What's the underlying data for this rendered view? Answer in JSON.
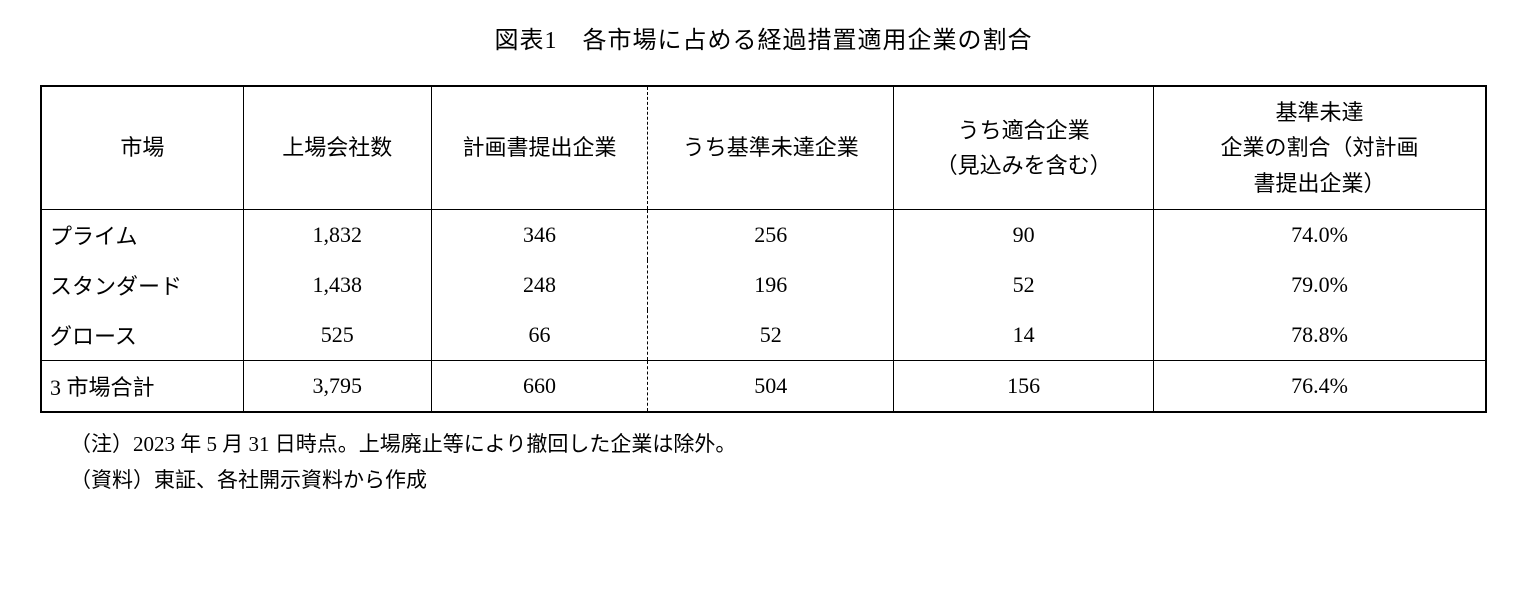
{
  "title": "図表1　各市場に占める経過措置適用企業の割合",
  "columns": {
    "c1": "市場",
    "c2": "上場会社数",
    "c3": "計画書提出企業",
    "c4": "うち基準未達企業",
    "c5": "うち適合企業\n（見込みを含む）",
    "c6": "基準未達\n企業の割合（対計画\n書提出企業）"
  },
  "rows": [
    {
      "market": "プライム",
      "listed": "1,832",
      "plan": "346",
      "under": "256",
      "conform": "90",
      "ratio": "74.0%"
    },
    {
      "market": "スタンダード",
      "listed": "1,438",
      "plan": "248",
      "under": "196",
      "conform": "52",
      "ratio": "79.0%"
    },
    {
      "market": "グロース",
      "listed": "525",
      "plan": "66",
      "under": "52",
      "conform": "14",
      "ratio": "78.8%"
    }
  ],
  "total": {
    "market": "3 市場合計",
    "listed": "3,795",
    "plan": "660",
    "under": "504",
    "conform": "156",
    "ratio": "76.4%"
  },
  "notes": {
    "n1": "（注）2023 年 5 月 31 日時点。上場廃止等により撤回した企業は除外。",
    "n2": "（資料）東証、各社開示資料から作成"
  }
}
